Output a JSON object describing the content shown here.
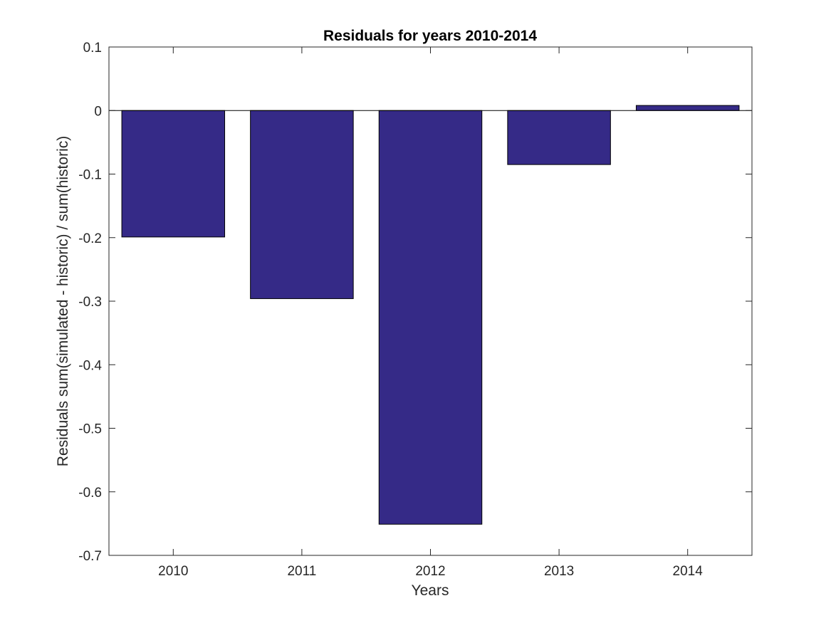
{
  "chart_data": {
    "type": "bar",
    "title": "Residuals for years 2010-2014",
    "xlabel": "Years",
    "ylabel": "Residuals sum(simulated - historic) / sum(historic)",
    "categories": [
      "2010",
      "2011",
      "2012",
      "2013",
      "2014"
    ],
    "values": [
      -0.199,
      -0.296,
      -0.651,
      -0.085,
      0.008
    ],
    "ylim": [
      -0.7,
      0.1
    ],
    "yticks": [
      0.1,
      0,
      -0.1,
      -0.2,
      -0.3,
      -0.4,
      -0.5,
      -0.6,
      -0.7
    ],
    "ytick_labels": [
      "0.1",
      "0",
      "-0.1",
      "-0.2",
      "-0.3",
      "-0.4",
      "-0.5",
      "-0.6",
      "-0.7"
    ],
    "bar_color": "#352a87",
    "grid": false,
    "legend": "none"
  }
}
